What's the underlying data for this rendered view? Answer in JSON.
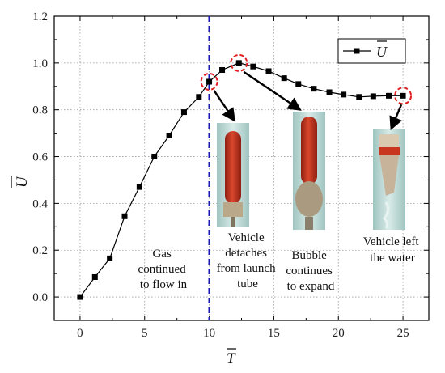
{
  "chart_data": {
    "type": "line",
    "title": "",
    "xlabel": "T",
    "ylabel": "U",
    "xlim": [
      -2,
      27
    ],
    "ylim": [
      -0.1,
      1.2
    ],
    "grid": true,
    "x_ticks": [
      0,
      5,
      10,
      15,
      20,
      25
    ],
    "y_ticks": [
      0.0,
      0.2,
      0.4,
      0.6,
      0.8,
      1.0,
      1.2
    ],
    "x_tick_labels": [
      "0",
      "5",
      "10",
      "15",
      "20",
      "25"
    ],
    "y_tick_labels": [
      "0.0",
      "0.2",
      "0.4",
      "0.6",
      "0.8",
      "1.0",
      "1.2"
    ],
    "legend": {
      "position": "top-right",
      "label": "U"
    },
    "series": [
      {
        "name": "U",
        "color": "#000000",
        "marker": "square",
        "x": [
          0,
          1.15,
          2.3,
          3.45,
          4.6,
          5.75,
          6.9,
          8.05,
          9.2,
          10.0,
          11.0,
          12.3,
          13.4,
          14.6,
          15.8,
          16.9,
          18.1,
          19.3,
          20.4,
          21.6,
          22.7,
          23.9,
          25.0
        ],
        "values": [
          0.0,
          0.085,
          0.165,
          0.345,
          0.47,
          0.6,
          0.69,
          0.79,
          0.855,
          0.92,
          0.97,
          1.0,
          0.985,
          0.965,
          0.935,
          0.91,
          0.89,
          0.875,
          0.865,
          0.855,
          0.858,
          0.86,
          0.86
        ]
      }
    ],
    "vertical_line": {
      "x": 10,
      "color": "#1a1ab0",
      "style": "dashed"
    },
    "highlight_points": [
      {
        "x": 10.0,
        "y": 0.92
      },
      {
        "x": 12.3,
        "y": 1.0
      },
      {
        "x": 25.0,
        "y": 0.86
      }
    ],
    "annotations": [
      {
        "lines": [
          "Gas",
          "continued",
          "to flow in"
        ]
      },
      {
        "lines": [
          "Vehicle",
          "detaches",
          "from launch",
          "tube"
        ]
      },
      {
        "lines": [
          "Bubble",
          "continues",
          "to expand"
        ]
      },
      {
        "lines": [
          "Vehicle left",
          "the water"
        ]
      }
    ]
  },
  "colors": {
    "axis": "#000000",
    "grid": "#9a9a9a",
    "highlight": "#e02020",
    "arrow": "#000000",
    "vehicle_red": "#c8361f",
    "water": "#b9d6d3"
  }
}
